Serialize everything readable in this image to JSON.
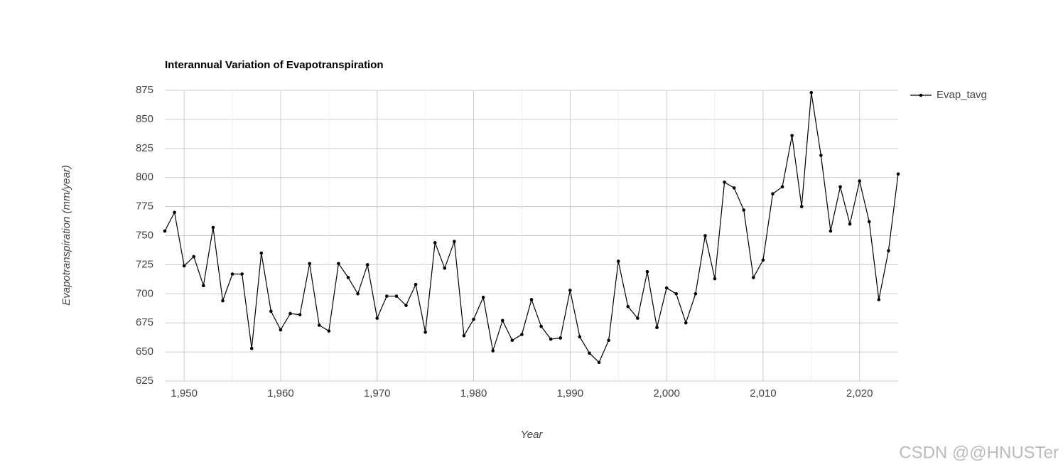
{
  "chart_data": {
    "type": "line",
    "title": "Interannual Variation of Evapotranspiration",
    "x_label": "Year",
    "y_label": "Evapotranspiration (mm/year)",
    "x": [
      1948,
      1949,
      1950,
      1951,
      1952,
      1953,
      1954,
      1955,
      1956,
      1957,
      1958,
      1959,
      1960,
      1961,
      1962,
      1963,
      1964,
      1965,
      1966,
      1967,
      1968,
      1969,
      1970,
      1971,
      1972,
      1973,
      1974,
      1975,
      1976,
      1977,
      1978,
      1979,
      1980,
      1981,
      1982,
      1983,
      1984,
      1985,
      1986,
      1987,
      1988,
      1989,
      1990,
      1991,
      1992,
      1993,
      1994,
      1995,
      1996,
      1997,
      1998,
      1999,
      2000,
      2001,
      2002,
      2003,
      2004,
      2005,
      2006,
      2007,
      2008,
      2009,
      2010,
      2011,
      2012,
      2013,
      2014,
      2015,
      2016,
      2017,
      2018,
      2019,
      2020,
      2021,
      2022,
      2023,
      2024
    ],
    "series": [
      {
        "name": "Evap_tavg",
        "color": "#000000",
        "values": [
          754,
          770,
          724,
          732,
          707,
          757,
          694,
          717,
          717,
          653,
          735,
          685,
          669,
          683,
          682,
          726,
          673,
          668,
          726,
          714,
          700,
          725,
          679,
          698,
          698,
          690,
          708,
          667,
          744,
          722,
          745,
          664,
          678,
          697,
          651,
          677,
          660,
          665,
          695,
          672,
          661,
          662,
          703,
          663,
          649,
          641,
          660,
          728,
          689,
          679,
          719,
          671,
          705,
          700,
          675,
          700,
          750,
          713,
          796,
          791,
          772,
          714,
          729,
          786,
          792,
          836,
          775,
          873,
          819,
          754,
          792,
          760,
          797,
          762,
          695,
          737,
          803
        ]
      }
    ],
    "xlim": [
      1948,
      2024
    ],
    "xticks": [
      {
        "value": 1950,
        "label": "1,950"
      },
      {
        "value": 1960,
        "label": "1,960"
      },
      {
        "value": 1970,
        "label": "1,970"
      },
      {
        "value": 1980,
        "label": "1,980"
      },
      {
        "value": 1990,
        "label": "1,990"
      },
      {
        "value": 2000,
        "label": "2,000"
      },
      {
        "value": 2010,
        "label": "2,010"
      },
      {
        "value": 2020,
        "label": "2,020"
      }
    ],
    "ylim": [
      625,
      875
    ],
    "yticks": [
      625,
      650,
      675,
      700,
      725,
      750,
      775,
      800,
      825,
      850,
      875
    ],
    "grid": true,
    "legend": "right",
    "watermark": "CSDN @@HNUSTer"
  }
}
